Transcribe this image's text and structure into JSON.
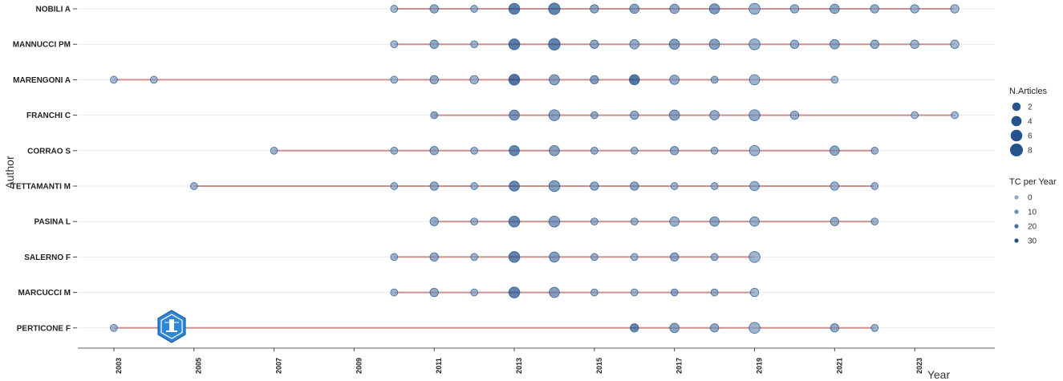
{
  "chart_data": {
    "type": "scatter",
    "xlabel": "Year",
    "ylabel": "Author",
    "xlim": [
      2002.1,
      2025.0
    ],
    "x_ticks": [
      2003,
      2005,
      2007,
      2009,
      2011,
      2013,
      2015,
      2017,
      2019,
      2021,
      2023
    ],
    "grid": "horizontal",
    "legend_position": "right",
    "colors": {
      "timeline": "#c9908f",
      "low": "#8aa6c6",
      "high": "#0b3f7f",
      "gridline": "#ebebeb",
      "axis": "#7f7f7f"
    },
    "legend_articles": {
      "title": "N.Articles",
      "values": [
        2,
        4,
        6,
        8
      ]
    },
    "legend_tc": {
      "title": "TC per Year",
      "values": [
        0,
        10,
        20,
        30
      ]
    },
    "authors": [
      {
        "name": "NOBILI A",
        "start": 2010,
        "end": 2024,
        "points": [
          [
            2010,
            1,
            2
          ],
          [
            2011,
            2,
            8
          ],
          [
            2012,
            1,
            4
          ],
          [
            2013,
            5,
            28
          ],
          [
            2014,
            6,
            26
          ],
          [
            2015,
            2,
            10
          ],
          [
            2016,
            3,
            12
          ],
          [
            2017,
            3,
            10
          ],
          [
            2018,
            4,
            16
          ],
          [
            2019,
            5,
            6
          ],
          [
            2020,
            2,
            6
          ],
          [
            2021,
            3,
            10
          ],
          [
            2022,
            2,
            6
          ],
          [
            2023,
            2,
            4
          ],
          [
            2024,
            2,
            2
          ]
        ]
      },
      {
        "name": "MANNUCCI PM",
        "start": 2010,
        "end": 2024,
        "points": [
          [
            2010,
            1,
            2
          ],
          [
            2011,
            2,
            8
          ],
          [
            2012,
            1,
            4
          ],
          [
            2013,
            5,
            28
          ],
          [
            2014,
            6,
            26
          ],
          [
            2015,
            2,
            10
          ],
          [
            2016,
            3,
            8
          ],
          [
            2017,
            4,
            14
          ],
          [
            2018,
            4,
            12
          ],
          [
            2019,
            5,
            6
          ],
          [
            2020,
            2,
            6
          ],
          [
            2021,
            3,
            10
          ],
          [
            2022,
            2,
            6
          ],
          [
            2023,
            2,
            4
          ],
          [
            2024,
            2,
            2
          ]
        ]
      },
      {
        "name": "MARENGONI A",
        "start": 2003,
        "end": 2021,
        "points": [
          [
            2003,
            1,
            2
          ],
          [
            2004,
            1,
            2
          ],
          [
            2010,
            1,
            2
          ],
          [
            2011,
            2,
            8
          ],
          [
            2012,
            2,
            4
          ],
          [
            2013,
            5,
            32
          ],
          [
            2014,
            4,
            12
          ],
          [
            2015,
            2,
            14
          ],
          [
            2016,
            4,
            30
          ],
          [
            2017,
            3,
            8
          ],
          [
            2018,
            1,
            6
          ],
          [
            2019,
            4,
            4
          ],
          [
            2021,
            1,
            2
          ]
        ]
      },
      {
        "name": "FRANCHI C",
        "start": 2011,
        "end": 2024,
        "points": [
          [
            2011,
            1,
            10
          ],
          [
            2013,
            4,
            18
          ],
          [
            2014,
            5,
            12
          ],
          [
            2015,
            1,
            8
          ],
          [
            2016,
            2,
            8
          ],
          [
            2017,
            4,
            12
          ],
          [
            2018,
            3,
            8
          ],
          [
            2019,
            5,
            8
          ],
          [
            2020,
            2,
            6
          ],
          [
            2023,
            1,
            2
          ],
          [
            2024,
            1,
            2
          ]
        ]
      },
      {
        "name": "CORRAO S",
        "start": 2007,
        "end": 2022,
        "points": [
          [
            2007,
            1,
            4
          ],
          [
            2010,
            1,
            4
          ],
          [
            2011,
            2,
            8
          ],
          [
            2012,
            1,
            4
          ],
          [
            2013,
            4,
            24
          ],
          [
            2014,
            4,
            12
          ],
          [
            2015,
            1,
            6
          ],
          [
            2016,
            1,
            4
          ],
          [
            2017,
            2,
            8
          ],
          [
            2018,
            1,
            4
          ],
          [
            2019,
            4,
            4
          ],
          [
            2021,
            3,
            10
          ],
          [
            2022,
            1,
            4
          ]
        ]
      },
      {
        "name": "TETTAMANTI M",
        "start": 2005,
        "end": 2022,
        "points": [
          [
            2005,
            1,
            4
          ],
          [
            2010,
            1,
            4
          ],
          [
            2011,
            2,
            8
          ],
          [
            2012,
            1,
            4
          ],
          [
            2013,
            4,
            24
          ],
          [
            2014,
            5,
            14
          ],
          [
            2015,
            2,
            8
          ],
          [
            2016,
            2,
            10
          ],
          [
            2017,
            1,
            4
          ],
          [
            2018,
            1,
            4
          ],
          [
            2019,
            3,
            6
          ],
          [
            2021,
            2,
            4
          ],
          [
            2022,
            1,
            4
          ]
        ]
      },
      {
        "name": "PASINA L",
        "start": 2011,
        "end": 2022,
        "points": [
          [
            2011,
            2,
            8
          ],
          [
            2012,
            1,
            4
          ],
          [
            2013,
            5,
            24
          ],
          [
            2014,
            5,
            14
          ],
          [
            2015,
            1,
            6
          ],
          [
            2016,
            1,
            4
          ],
          [
            2017,
            3,
            6
          ],
          [
            2018,
            3,
            10
          ],
          [
            2019,
            3,
            6
          ],
          [
            2021,
            2,
            6
          ],
          [
            2022,
            1,
            4
          ]
        ]
      },
      {
        "name": "SALERNO F",
        "start": 2010,
        "end": 2019,
        "points": [
          [
            2010,
            1,
            4
          ],
          [
            2011,
            2,
            8
          ],
          [
            2012,
            1,
            4
          ],
          [
            2013,
            5,
            26
          ],
          [
            2014,
            4,
            14
          ],
          [
            2015,
            1,
            6
          ],
          [
            2016,
            1,
            4
          ],
          [
            2017,
            2,
            10
          ],
          [
            2018,
            1,
            4
          ],
          [
            2019,
            5,
            4
          ]
        ]
      },
      {
        "name": "MARCUCCI M",
        "start": 2010,
        "end": 2019,
        "points": [
          [
            2010,
            1,
            4
          ],
          [
            2011,
            2,
            8
          ],
          [
            2012,
            1,
            4
          ],
          [
            2013,
            5,
            26
          ],
          [
            2014,
            4,
            14
          ],
          [
            2015,
            1,
            6
          ],
          [
            2016,
            1,
            4
          ],
          [
            2017,
            1,
            10
          ],
          [
            2018,
            1,
            6
          ],
          [
            2019,
            2,
            2
          ]
        ]
      },
      {
        "name": "PERTICONE F",
        "start": 2003,
        "end": 2022,
        "points": [
          [
            2003,
            1,
            4
          ],
          [
            2016,
            2,
            24
          ],
          [
            2017,
            3,
            12
          ],
          [
            2018,
            2,
            8
          ],
          [
            2019,
            5,
            4
          ],
          [
            2021,
            2,
            8
          ],
          [
            2022,
            1,
            4
          ]
        ]
      }
    ]
  }
}
